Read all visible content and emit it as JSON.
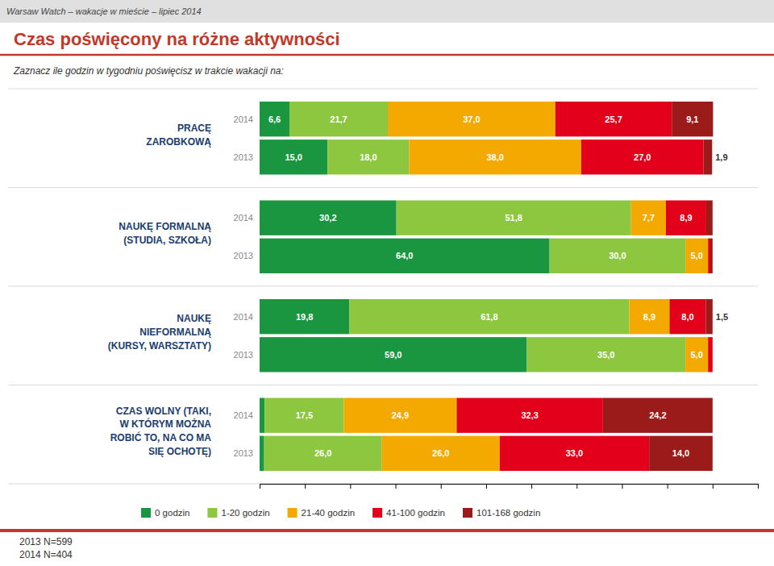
{
  "chart_data": {
    "type": "bar",
    "orientation": "horizontal",
    "stacked": true,
    "data_labels": true,
    "legend": "bottom",
    "tick_labels": false,
    "header": "Warsaw Watch – wakacje w mieście – lipiec 2014",
    "title": "Czas poświęcony na różne aktywności",
    "subtitle": "Zaznacz ile godzin w tygodniu poświęcisz w trakcie wakacji na:",
    "footer": "2013 N=599\n2014 N=404",
    "categories": [
      "PRACĘ\nZAROBKOWĄ",
      "NAUKĘ FORMALNĄ\n(STUDIA, SZKOŁA)",
      "NAUKĘ\nNIEFORMALNĄ\n(KURSY, WARSZTATY)",
      "CZAS WOLNY (TAKI,\nW KTÓRYM MOŻNA\nROBIĆ TO, NA CO MA\nSIĘ OCHOTĘ)"
    ],
    "years": [
      "2014",
      "2013"
    ],
    "xlim": [
      0,
      110
    ],
    "xticks": [
      0,
      10,
      20,
      30,
      40,
      50,
      60,
      70,
      80,
      90,
      100,
      110
    ],
    "series": [
      {
        "name": "0 godzin",
        "color": "#1a9641",
        "values": [
          [
            6.6,
            15.0
          ],
          [
            30.2,
            64.0
          ],
          [
            19.8,
            59.0
          ],
          [
            1.1,
            1.0
          ]
        ],
        "value_labels": [
          [
            "6,6",
            "15,0"
          ],
          [
            "30,2",
            "64,0"
          ],
          [
            "19,8",
            "59,0"
          ],
          [
            null,
            null
          ]
        ]
      },
      {
        "name": "1-20 godzin",
        "color": "#8dc63f",
        "values": [
          [
            21.7,
            18.0
          ],
          [
            51.8,
            30.0
          ],
          [
            61.8,
            35.0
          ],
          [
            17.5,
            26.0
          ]
        ],
        "value_labels": [
          [
            "21,7",
            "18,0"
          ],
          [
            "51,8",
            "30,0"
          ],
          [
            "61,8",
            "35,0"
          ],
          [
            "17,5",
            "26,0"
          ]
        ]
      },
      {
        "name": "21-40 godzin",
        "color": "#f4a900",
        "values": [
          [
            37.0,
            38.0
          ],
          [
            7.7,
            5.0
          ],
          [
            8.9,
            5.0
          ],
          [
            24.9,
            26.0
          ]
        ],
        "value_labels": [
          [
            "37,0",
            "38,0"
          ],
          [
            "7,7",
            "5,0"
          ],
          [
            "8,9",
            "5,0"
          ],
          [
            "24,9",
            "26,0"
          ]
        ]
      },
      {
        "name": "41-100 godzin",
        "color": "#e2001a",
        "values": [
          [
            25.7,
            27.0
          ],
          [
            8.9,
            0.5
          ],
          [
            8.0,
            1.0
          ],
          [
            32.3,
            33.0
          ]
        ],
        "value_labels": [
          [
            "25,7",
            "27,0"
          ],
          [
            "8,9",
            null
          ],
          [
            "8,0",
            null
          ],
          [
            "32,3",
            "33,0"
          ]
        ]
      },
      {
        "name": "101-168 godzin",
        "color": "#9b1b1b",
        "values": [
          [
            9.1,
            1.9
          ],
          [
            1.4,
            0.5
          ],
          [
            1.5,
            0.0
          ],
          [
            24.2,
            14.0
          ]
        ],
        "value_labels": [
          [
            "9,1",
            "1,9"
          ],
          [
            null,
            null
          ],
          [
            "1,5",
            null
          ],
          [
            "24,2",
            "14,0"
          ]
        ]
      }
    ]
  }
}
